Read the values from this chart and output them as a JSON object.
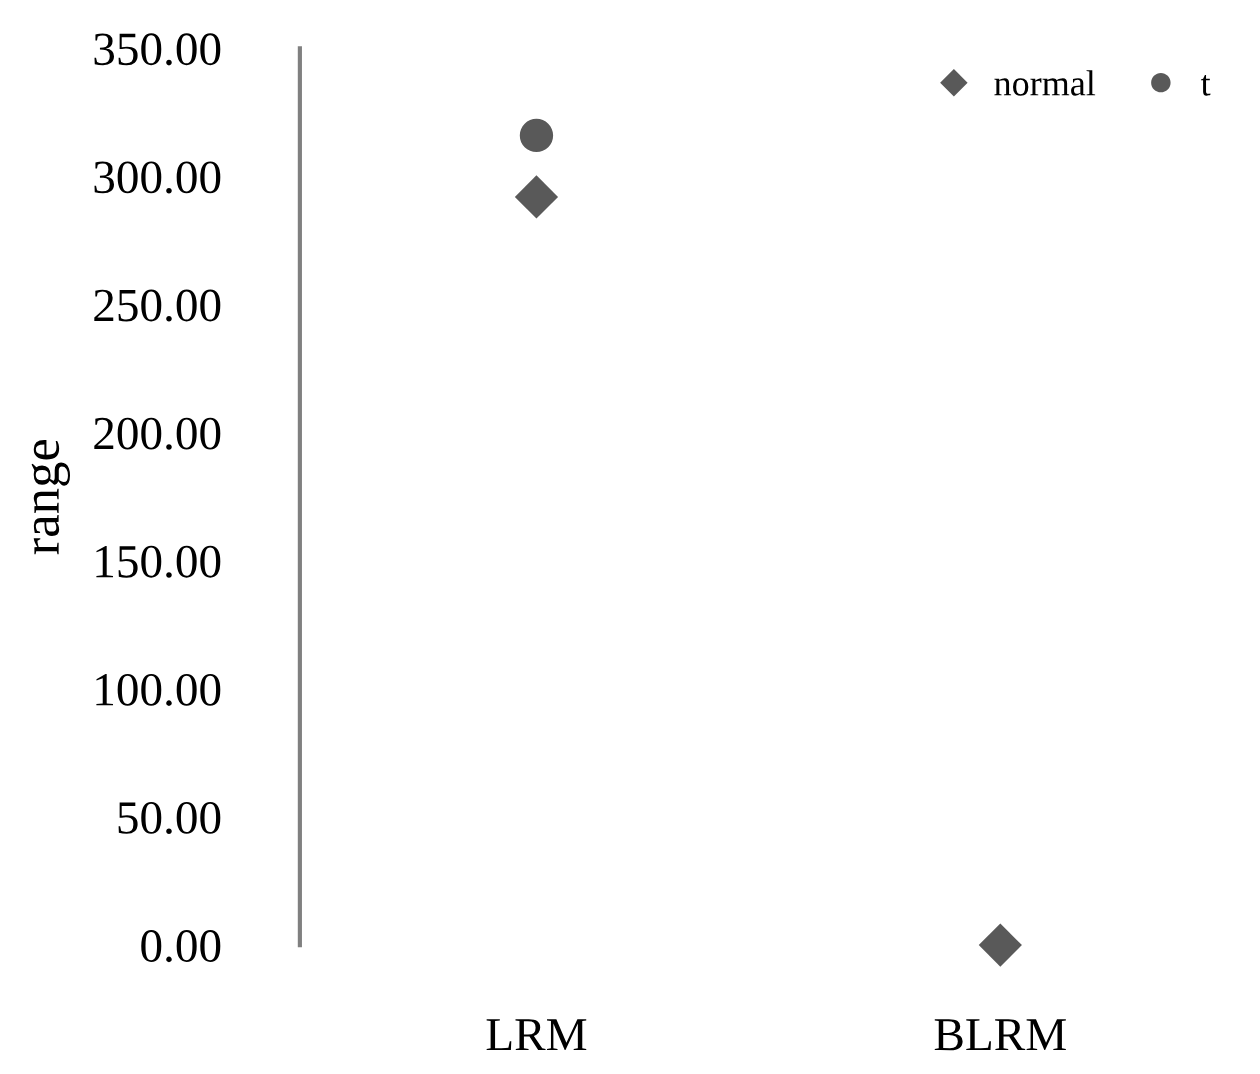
{
  "chart_data": {
    "type": "scatter",
    "ylabel": "range",
    "categories": [
      "LRM",
      "BLRM"
    ],
    "series": [
      {
        "name": "normal",
        "color": "#595959",
        "marker": "diamond",
        "values": [
          292,
          0
        ]
      },
      {
        "name": "t",
        "color": "#595959",
        "marker": "circle",
        "values": [
          316,
          null
        ]
      }
    ],
    "ylim": [
      0,
      350
    ],
    "yticks": [
      {
        "value": 0,
        "label": "0.00"
      },
      {
        "value": 50,
        "label": "50.00"
      },
      {
        "value": 100,
        "label": "100.00"
      },
      {
        "value": 150,
        "label": "150.00"
      },
      {
        "value": 200,
        "label": "200.00"
      },
      {
        "value": 250,
        "label": "250.00"
      },
      {
        "value": 300,
        "label": "300.00"
      },
      {
        "value": 350,
        "label": "350.00"
      }
    ],
    "grid": false,
    "legend": "top right"
  }
}
